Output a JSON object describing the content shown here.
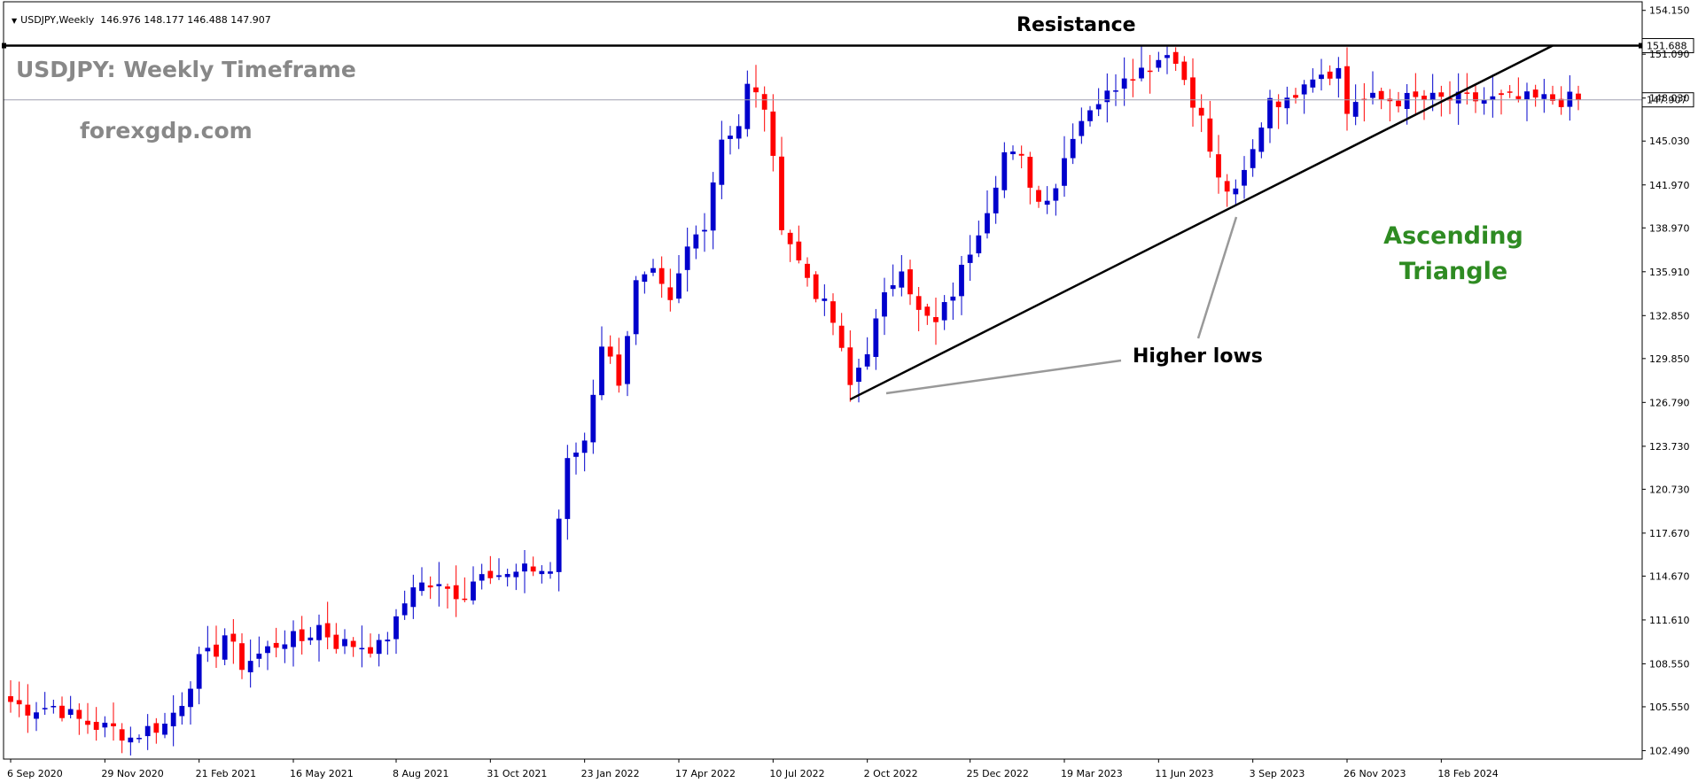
{
  "header": {
    "symbol_label": "USDJPY,Weekly",
    "ohlc": [
      "146.976",
      "148.177",
      "146.488",
      "147.907"
    ]
  },
  "annotations": {
    "title": "USDJPY: Weekly Timeframe",
    "site": "forexgdp.com",
    "resistance": "Resistance",
    "higher_lows": "Higher lows",
    "pattern_line1": "Ascending",
    "pattern_line2": "Triangle"
  },
  "colors": {
    "bull": "#0000cc",
    "bear": "#ff0000",
    "resistance_line": "#000000",
    "trendline": "#000000",
    "pointer": "#999999",
    "title_text": "#888888",
    "pattern_text": "#2e8b22",
    "background": "#ffffff"
  },
  "chart_data": {
    "type": "candlestick",
    "title": "USDJPY: Weekly Timeframe",
    "timeframe": "Weekly",
    "y_ticks": [
      "154.150",
      "151.090",
      "148.030",
      "145.030",
      "141.970",
      "138.970",
      "135.910",
      "132.850",
      "129.850",
      "126.790",
      "123.730",
      "120.730",
      "117.670",
      "114.670",
      "111.610",
      "108.550",
      "105.550",
      "102.490"
    ],
    "ylim": [
      101.9,
      154.75
    ],
    "x_ticks": [
      "6 Sep 2020",
      "29 Nov 2020",
      "21 Feb 2021",
      "16 May 2021",
      "8 Aug 2021",
      "31 Oct 2021",
      "23 Jan 2022",
      "17 Apr 2022",
      "10 Jul 2022",
      "2 Oct 2022",
      "25 Dec 2022",
      "19 Mar 2023",
      "11 Jun 2023",
      "3 Sep 2023",
      "26 Nov 2023",
      "18 Feb 2024"
    ],
    "candle_count": 184,
    "resistance_level": 151.688,
    "resistance_label": "151.688",
    "current_price": 147.907,
    "current_price_label": "147.907",
    "trendline": {
      "from": {
        "index": 98,
        "price": 127.0
      },
      "to": {
        "index": 180,
        "price": 151.688
      }
    },
    "anchors": [
      [
        0,
        105.9
      ],
      [
        2,
        105.4
      ],
      [
        5,
        105.6
      ],
      [
        8,
        104.6
      ],
      [
        10,
        104.2
      ],
      [
        12,
        104.0
      ],
      [
        14,
        103.4
      ],
      [
        16,
        104.0
      ],
      [
        18,
        104.3
      ],
      [
        20,
        106.0
      ],
      [
        22,
        108.7
      ],
      [
        24,
        109.5
      ],
      [
        25,
        110.6
      ],
      [
        27,
        108.5
      ],
      [
        29,
        109.2
      ],
      [
        32,
        110.3
      ],
      [
        34,
        110.2
      ],
      [
        36,
        111.2
      ],
      [
        38,
        110.0
      ],
      [
        40,
        109.9
      ],
      [
        43,
        109.7
      ],
      [
        45,
        111.4
      ],
      [
        47,
        114.2
      ],
      [
        49,
        114.0
      ],
      [
        51,
        113.6
      ],
      [
        53,
        113.4
      ],
      [
        55,
        115.3
      ],
      [
        58,
        114.6
      ],
      [
        61,
        115.2
      ],
      [
        63,
        115.0
      ],
      [
        65,
        122.5
      ],
      [
        67,
        124.2
      ],
      [
        69,
        131.0
      ],
      [
        71,
        128.4
      ],
      [
        73,
        135.0
      ],
      [
        75,
        135.6
      ],
      [
        77,
        133.5
      ],
      [
        79,
        137.5
      ],
      [
        81,
        139.4
      ],
      [
        83,
        145.3
      ],
      [
        85,
        146.2
      ],
      [
        86,
        148.8
      ],
      [
        88,
        147.5
      ],
      [
        90,
        139.4
      ],
      [
        92,
        136.6
      ],
      [
        94,
        134.5
      ],
      [
        96,
        132.4
      ],
      [
        98,
        127.9
      ],
      [
        100,
        130.6
      ],
      [
        102,
        134.0
      ],
      [
        104,
        136.5
      ],
      [
        106,
        133.0
      ],
      [
        108,
        132.2
      ],
      [
        110,
        134.5
      ],
      [
        112,
        137.5
      ],
      [
        114,
        140.5
      ],
      [
        116,
        144.2
      ],
      [
        118,
        143.6
      ],
      [
        120,
        140.8
      ],
      [
        122,
        142.0
      ],
      [
        124,
        145.7
      ],
      [
        126,
        147.5
      ],
      [
        128,
        148.2
      ],
      [
        130,
        149.8
      ],
      [
        132,
        150.0
      ],
      [
        134,
        150.8
      ],
      [
        135,
        151.5
      ],
      [
        137,
        149.4
      ],
      [
        139,
        146.5
      ],
      [
        141,
        142.2
      ],
      [
        143,
        141.2
      ],
      [
        145,
        144.3
      ],
      [
        147,
        148.2
      ],
      [
        149,
        147.6
      ],
      [
        151,
        149.5
      ],
      [
        153,
        149.9
      ],
      [
        155,
        150.0
      ],
      [
        156,
        147.0
      ],
      [
        157,
        147.907
      ]
    ],
    "series": [
      {
        "name": "USDJPY",
        "values_from": "anchors"
      }
    ]
  }
}
